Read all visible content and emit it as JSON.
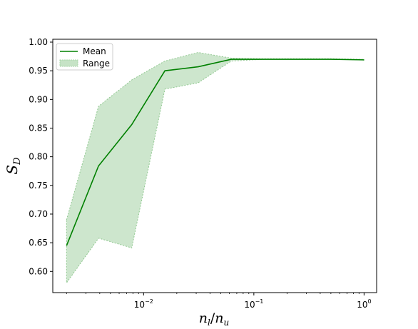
{
  "chart_data": {
    "type": "line",
    "xscale": "log",
    "xlim": [
      0.0015,
      1.3
    ],
    "ylim": [
      0.563,
      1.005
    ],
    "x": [
      0.002,
      0.0039,
      0.0078,
      0.0156,
      0.03125,
      0.0625,
      0.125,
      0.25,
      0.5,
      1.0
    ],
    "series": [
      {
        "name": "Mean",
        "color": "#008000",
        "values": [
          0.645,
          0.784,
          0.856,
          0.95,
          0.957,
          0.97,
          0.97,
          0.97,
          0.97,
          0.969
        ]
      }
    ],
    "range": {
      "name": "Range",
      "color": "#90c890",
      "lower": [
        0.58,
        0.658,
        0.641,
        0.918,
        0.929,
        0.967,
        0.97,
        0.97,
        0.97,
        0.969
      ],
      "upper": [
        0.69,
        0.888,
        0.934,
        0.967,
        0.982,
        0.972,
        0.971,
        0.971,
        0.971,
        0.97
      ]
    },
    "yticks": [
      0.6,
      0.65,
      0.7,
      0.75,
      0.8,
      0.85,
      0.9,
      0.95,
      1.0
    ],
    "ytick_labels": [
      "0.60",
      "0.65",
      "0.70",
      "0.75",
      "0.80",
      "0.85",
      "0.90",
      "0.95",
      "1.00"
    ],
    "xticks": [
      {
        "value": 0.01,
        "base": "10",
        "exp": "−2"
      },
      {
        "value": 0.1,
        "base": "10",
        "exp": "−1"
      },
      {
        "value": 1.0,
        "base": "10",
        "exp": "0"
      }
    ],
    "xlabel": {
      "n1": "n",
      "sub1": "l",
      "slash": "/",
      "n2": "n",
      "sub2": "u"
    },
    "ylabel": {
      "main": "S",
      "sub": "D"
    },
    "legend": {
      "position": "upper-left",
      "mean_label": "Mean",
      "range_label": "Range"
    },
    "grid": false
  }
}
